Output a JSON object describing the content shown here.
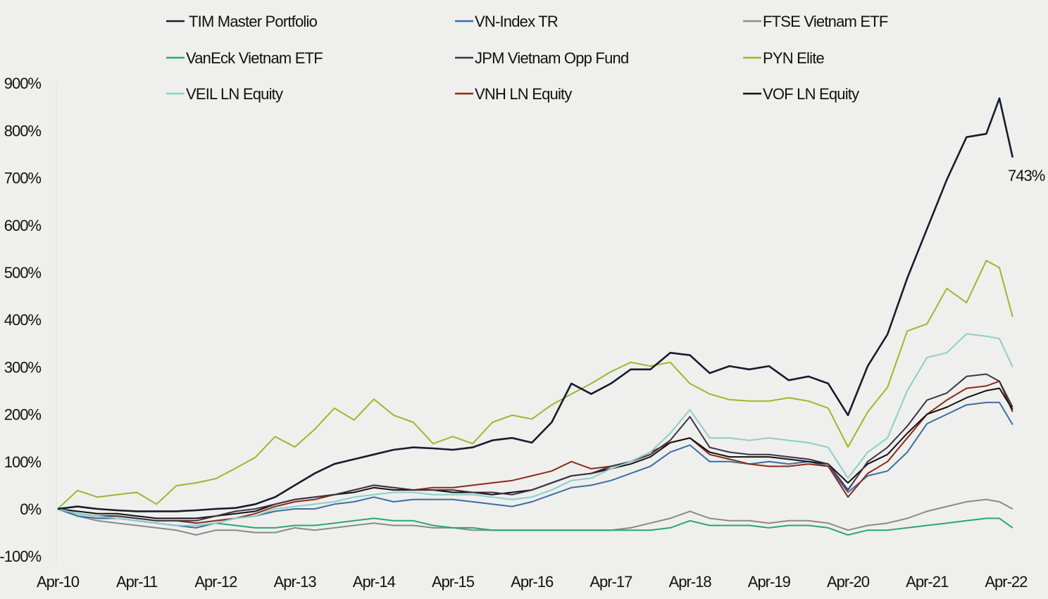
{
  "chart_data": {
    "type": "line",
    "title": "",
    "xlabel": "",
    "ylabel": "",
    "ylim": [
      -100,
      900
    ],
    "grid": false,
    "legend_position": "top",
    "y_ticks": [
      "-100%",
      "0%",
      "100%",
      "200%",
      "300%",
      "400%",
      "500%",
      "600%",
      "700%",
      "800%",
      "900%"
    ],
    "x_ticks": [
      "Apr-10",
      "Apr-11",
      "Apr-12",
      "Apr-13",
      "Apr-14",
      "Apr-15",
      "Apr-16",
      "Apr-17",
      "Apr-18",
      "Apr-19",
      "Apr-20",
      "Apr-21",
      "Apr-22"
    ],
    "x": [
      "Apr-10",
      "Jul-10",
      "Oct-10",
      "Jan-11",
      "Apr-11",
      "Jul-11",
      "Oct-11",
      "Jan-12",
      "Apr-12",
      "Jul-12",
      "Oct-12",
      "Jan-13",
      "Apr-13",
      "Jul-13",
      "Oct-13",
      "Jan-14",
      "Apr-14",
      "Jul-14",
      "Oct-14",
      "Jan-15",
      "Apr-15",
      "Jul-15",
      "Oct-15",
      "Jan-16",
      "Apr-16",
      "Jul-16",
      "Oct-16",
      "Jan-17",
      "Apr-17",
      "Jul-17",
      "Oct-17",
      "Jan-18",
      "Apr-18",
      "Jul-18",
      "Oct-18",
      "Jan-19",
      "Apr-19",
      "Jul-19",
      "Oct-19",
      "Jan-20",
      "Apr-20",
      "Jul-20",
      "Oct-20",
      "Jan-21",
      "Apr-21",
      "Jul-21",
      "Oct-21",
      "Jan-22",
      "Mar-22",
      "May-22"
    ],
    "annotation": "743%",
    "series": [
      {
        "name": "TIM Master Portfolio",
        "color": "#1a1a2e",
        "values": [
          0,
          5,
          0,
          -3,
          -5,
          -5,
          -5,
          -3,
          0,
          2,
          10,
          25,
          50,
          75,
          95,
          105,
          115,
          125,
          130,
          128,
          125,
          130,
          145,
          150,
          140,
          183,
          265,
          243,
          265,
          295,
          295,
          330,
          325,
          287,
          302,
          295,
          302,
          272,
          280,
          265,
          198,
          302,
          369,
          488,
          592,
          696,
          786,
          793,
          868,
          743
        ]
      },
      {
        "name": "VN-Index TR",
        "color": "#3b6ea5",
        "values": [
          0,
          -15,
          -20,
          -20,
          -25,
          -30,
          -35,
          -40,
          -30,
          -20,
          -15,
          -5,
          0,
          0,
          10,
          15,
          25,
          15,
          20,
          20,
          20,
          15,
          10,
          5,
          15,
          30,
          45,
          50,
          60,
          75,
          90,
          120,
          135,
          100,
          100,
          95,
          100,
          95,
          100,
          90,
          35,
          70,
          80,
          120,
          180,
          200,
          220,
          225,
          225,
          178
        ]
      },
      {
        "name": "FTSE Vietnam ETF",
        "color": "#8a8a8a",
        "values": [
          0,
          -15,
          -25,
          -30,
          -35,
          -40,
          -45,
          -55,
          -45,
          -45,
          -50,
          -50,
          -40,
          -45,
          -40,
          -35,
          -30,
          -35,
          -35,
          -40,
          -40,
          -45,
          -45,
          -45,
          -45,
          -45,
          -45,
          -45,
          -45,
          -40,
          -30,
          -20,
          -5,
          -20,
          -25,
          -25,
          -30,
          -25,
          -25,
          -30,
          -45,
          -35,
          -30,
          -20,
          -5,
          5,
          15,
          20,
          15,
          0
        ]
      },
      {
        "name": "VanEck Vietnam ETF",
        "color": "#2aa774",
        "values": [
          0,
          -15,
          -20,
          -20,
          -25,
          -30,
          -35,
          -35,
          -30,
          -35,
          -40,
          -40,
          -35,
          -35,
          -30,
          -25,
          -20,
          -25,
          -25,
          -35,
          -40,
          -40,
          -45,
          -45,
          -45,
          -45,
          -45,
          -45,
          -45,
          -45,
          -45,
          -40,
          -25,
          -35,
          -35,
          -35,
          -40,
          -35,
          -35,
          -40,
          -55,
          -45,
          -45,
          -40,
          -35,
          -30,
          -25,
          -20,
          -20,
          -40
        ]
      },
      {
        "name": "JPM Vietnam Opp Fund",
        "color": "#3d3346",
        "values": [
          0,
          -10,
          -15,
          -15,
          -20,
          -25,
          -25,
          -25,
          -15,
          -5,
          0,
          10,
          20,
          25,
          30,
          40,
          50,
          45,
          40,
          40,
          40,
          35,
          35,
          30,
          40,
          55,
          70,
          75,
          90,
          100,
          115,
          145,
          195,
          130,
          120,
          115,
          115,
          110,
          105,
          95,
          40,
          100,
          130,
          175,
          230,
          245,
          280,
          285,
          270,
          215
        ]
      },
      {
        "name": "PYN Elite",
        "color": "#9bb82a",
        "values": [
          0,
          39,
          25,
          30,
          35,
          10,
          49,
          55,
          64,
          86,
          109,
          153,
          131,
          168,
          213,
          188,
          232,
          198,
          183,
          138,
          153,
          138,
          183,
          198,
          190,
          220,
          243,
          265,
          290,
          310,
          302,
          310,
          265,
          243,
          231,
          228,
          228,
          235,
          228,
          213,
          131,
          205,
          257,
          376,
          391,
          466,
          436,
          525,
          510,
          406
        ]
      },
      {
        "name": "VEIL LN Equity",
        "color": "#8ccfc9",
        "values": [
          0,
          -10,
          -15,
          -20,
          -25,
          -30,
          -35,
          -35,
          -30,
          -20,
          -15,
          0,
          5,
          10,
          15,
          25,
          30,
          35,
          35,
          30,
          30,
          30,
          25,
          20,
          25,
          40,
          60,
          65,
          85,
          100,
          120,
          160,
          210,
          150,
          150,
          145,
          150,
          145,
          140,
          130,
          65,
          120,
          150,
          250,
          320,
          330,
          370,
          365,
          360,
          300
        ]
      },
      {
        "name": "VNH LN Equity",
        "color": "#8b2a1a",
        "values": [
          0,
          -10,
          -15,
          -15,
          -20,
          -25,
          -25,
          -30,
          -25,
          -20,
          -10,
          5,
          15,
          20,
          30,
          40,
          50,
          45,
          40,
          45,
          45,
          50,
          55,
          60,
          70,
          80,
          100,
          85,
          90,
          100,
          120,
          140,
          150,
          115,
          105,
          95,
          90,
          90,
          95,
          90,
          25,
          75,
          100,
          150,
          200,
          230,
          255,
          260,
          270,
          205
        ]
      },
      {
        "name": "VOF LN Equity",
        "color": "#111111",
        "values": [
          0,
          -5,
          -10,
          -10,
          -15,
          -20,
          -20,
          -20,
          -15,
          -10,
          -5,
          10,
          20,
          25,
          30,
          35,
          45,
          40,
          40,
          40,
          35,
          35,
          30,
          35,
          40,
          55,
          70,
          75,
          85,
          95,
          110,
          140,
          150,
          120,
          110,
          110,
          110,
          105,
          100,
          95,
          55,
          95,
          115,
          160,
          200,
          215,
          235,
          250,
          255,
          210
        ]
      }
    ]
  }
}
